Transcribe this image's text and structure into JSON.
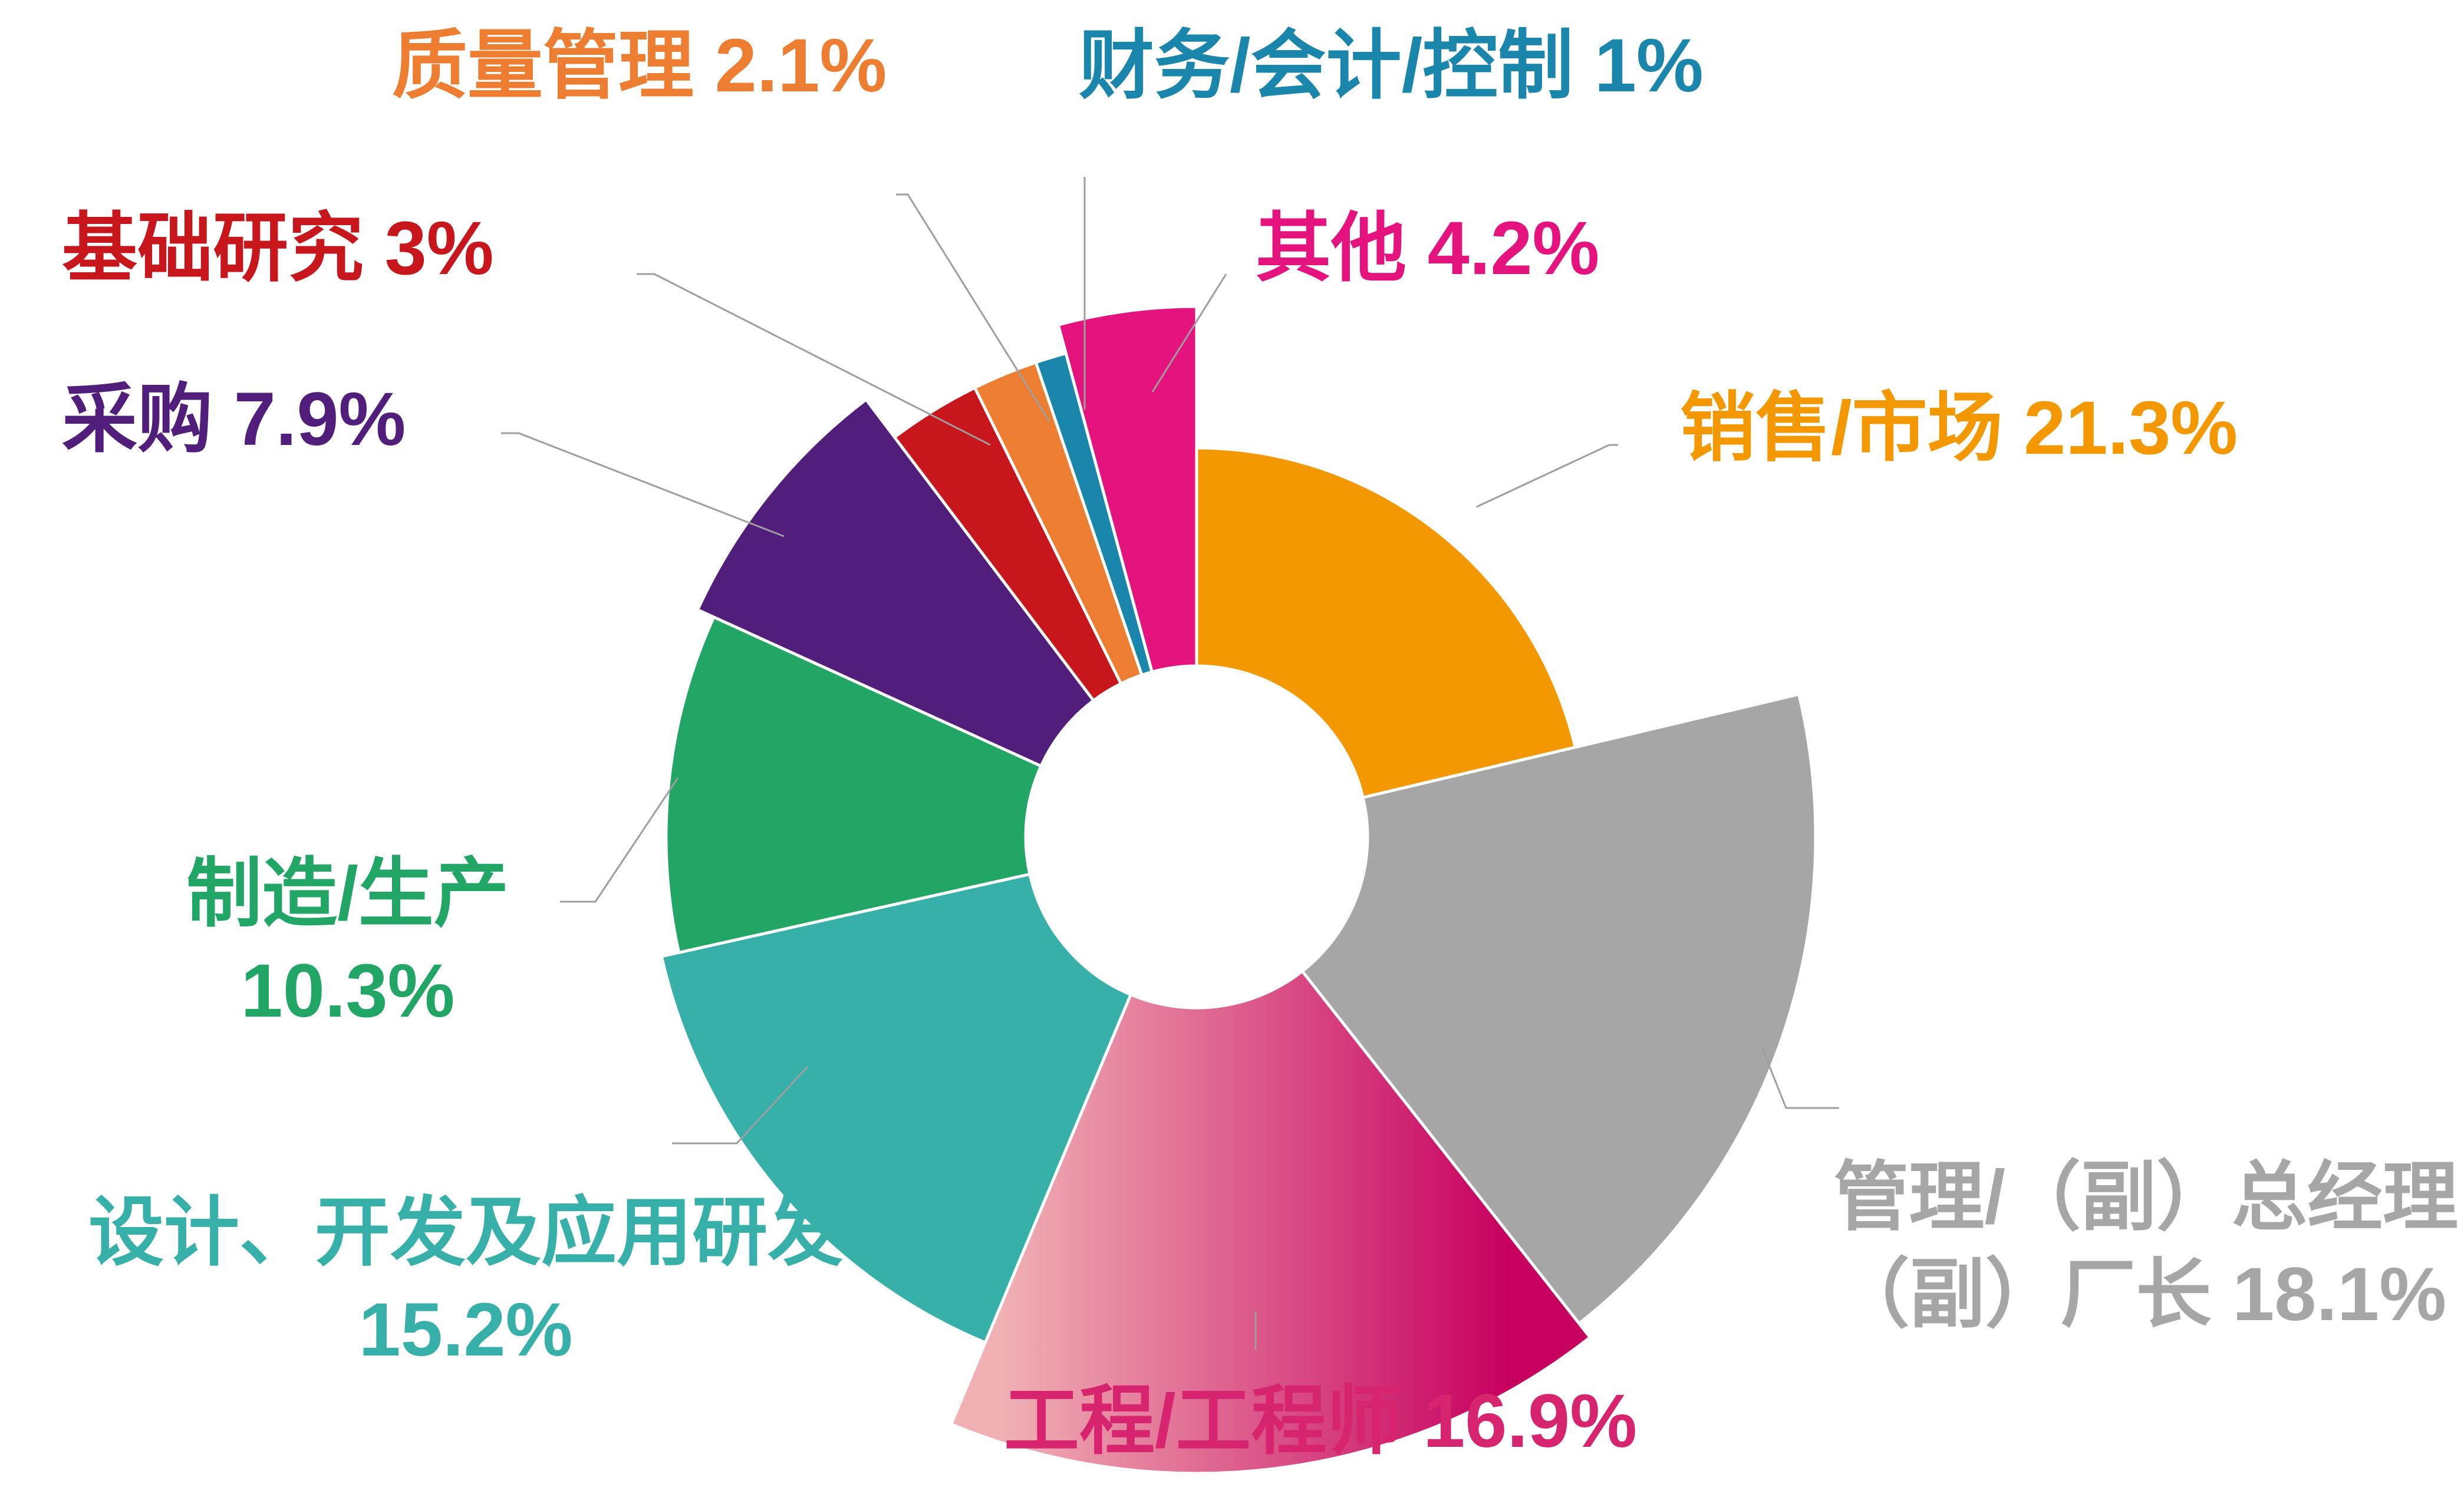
{
  "chart_data": {
    "type": "pie",
    "title": "",
    "series": [
      {
        "name": "",
        "slices": [
          {
            "label": "销售/市场",
            "value": 21.3,
            "value_label": "21.3%",
            "color": "#F39800"
          },
          {
            "label": "管理/（副）总经理（副）厂长",
            "label_lines": [
              "管理/（副）总经理",
              "（副）厂长 18.1%"
            ],
            "value": 18.1,
            "value_label": "18.1%",
            "color": "#A6A6A6"
          },
          {
            "label": "工程/工程师",
            "value": 16.9,
            "value_label": "16.9%",
            "color": "#D6246E",
            "gradient": [
              "#F0B0B4",
              "#C70060"
            ]
          },
          {
            "label": "设计、开发及应用研发",
            "value": 15.2,
            "value_label": "15.2%",
            "color": "#36B0A8"
          },
          {
            "label": "制造/生产",
            "value": 10.3,
            "value_label": "10.3%",
            "color": "#22A666"
          },
          {
            "label": "采购",
            "value": 7.9,
            "value_label": "7.9%",
            "color": "#521E7C"
          },
          {
            "label": "基础研究",
            "value": 3,
            "value_label": "3%",
            "color": "#C8161D"
          },
          {
            "label": "质量管理",
            "value": 2.1,
            "value_label": "2.1%",
            "color": "#ED7D31"
          },
          {
            "label": "财务/会计/控制",
            "value": 1,
            "value_label": "1%",
            "color": "#1A86AC"
          },
          {
            "label": "其他",
            "value": 4.2,
            "value_label": "4.2%",
            "color": "#E5137E"
          }
        ]
      }
    ],
    "legend": "none",
    "label_style": "outside-with-leader-lines"
  },
  "colors": {
    "background": "#FFFFFF",
    "leader_line": "#9E9E9E",
    "slice_border": "#FFFFFF"
  }
}
